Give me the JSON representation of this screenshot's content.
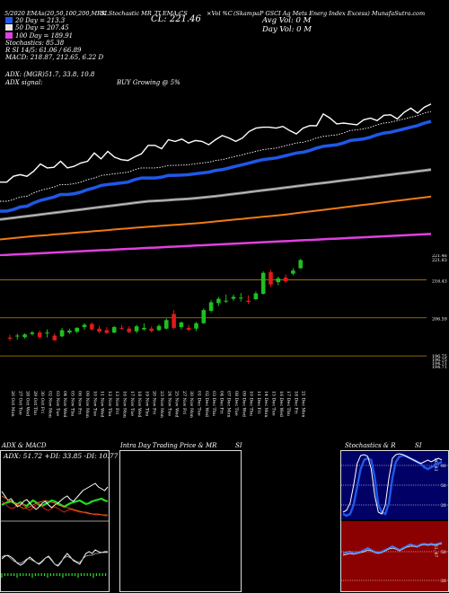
{
  "header": {
    "desc": "(SkampaP GSCI Ag Mets Energ Index Excess) MunafaSutra.com",
    "left_text": "5/2020 EMAs(20,50,100,200,MRK",
    "sl_text": "SLStochastic MR",
    "cl_label": "CL: 221.46",
    "vol_text": "×Vol %C",
    "ti_text": "TI EMA:CS",
    "avg_vol": "Avg Vol: 0  M",
    "day_vol": "Day Vol: 0   M"
  },
  "emas": [
    {
      "label": "20  Day = 213.3",
      "color": "#ffffff"
    },
    {
      "label": "50  Day = 207.45",
      "color": "#ffffff"
    },
    {
      "label": "100  Day = 189.91",
      "color": "#ffffff"
    },
    {
      "label": "Stochastics: 85.38",
      "color": null
    },
    {
      "label": "R         SI 14/5: 61.06 / 66.89",
      "color": null
    },
    {
      "label": "MACD: 218.87, 212.65, 6.22  D",
      "color": null
    }
  ],
  "adx_text": {
    "line1": "ADX:                         (MGR)51.7,  33.8,  10.8",
    "line2a": "ADX  signal:",
    "line2b": "BUY Growing @ 5%"
  },
  "colors": {
    "ema20": "#1f58e8",
    "ema50": "#c8c8c8",
    "ema100": "#f07a14",
    "ema200": "#e040e0",
    "up": "#1fbf1f",
    "down": "#e01a1a",
    "hline": "#b8860b",
    "stoch_bg": "#000066",
    "rsi_bg": "#8b0000"
  },
  "panels": {
    "adx_title": "ADX  & MACD",
    "adx_box": "ADX: 51.72  +DI: 33.85  -DI: 10.77",
    "intra_title": "Intra  Day Trading Price  & MR",
    "intra_si": "SI",
    "stoch_title": "Stochastics & R",
    "stoch_si": "SI",
    "stoch_levels": [
      "80",
      "50",
      "20"
    ],
    "stoch_right_label": "86, 83",
    "rsi_levels": [
      "50",
      "20"
    ],
    "rsi_right_label": "61, 67"
  },
  "chart_data": {
    "type": "candlestick",
    "price_axis_ticks": [
      "221.46",
      "221.83",
      "216.43",
      "206.59",
      "196.75",
      "196.75",
      "194.71",
      "194.71"
    ],
    "x_dates": [
      "26 Oct Mon",
      "27 Oct Tue",
      "28 Oct Wed",
      "29 Oct Thu",
      "30 Oct Fri",
      "02 Nov Mon",
      "03 Nov Tue",
      "04 Nov Wed",
      "05 Nov Thu",
      "06 Nov Fri",
      "09 Nov Mon",
      "10 Nov Tue",
      "11 Nov Wed",
      "12 Nov Thu",
      "13 Nov Fri",
      "16 Nov Mon",
      "17 Nov Tue",
      "18 Nov Wed",
      "19 Nov Thu",
      "20 Nov Fri",
      "23 Nov Mon",
      "24 Nov Tue",
      "25 Nov Wed",
      "27 Nov Fri",
      "30 Nov Mon",
      "01 Dec Tue",
      "02 Dec Wed",
      "03 Dec Thu",
      "04 Dec Fri",
      "07 Dec Mon",
      "08 Dec Tue",
      "09 Dec Wed",
      "10 Dec Thu",
      "11 Dec Fri",
      "14 Dec Mon",
      "15 Dec Tue",
      "16 Dec Wed",
      "17 Dec Thu",
      "18 Dec Fri",
      "21 Dec Mon"
    ],
    "candles": [
      {
        "o": 201.5,
        "h": 202.2,
        "l": 200.6,
        "c": 201.2
      },
      {
        "o": 201.8,
        "h": 202.5,
        "l": 201.0,
        "c": 202.0
      },
      {
        "o": 201.6,
        "h": 202.6,
        "l": 201.2,
        "c": 202.3
      },
      {
        "o": 202.4,
        "h": 203.2,
        "l": 202.0,
        "c": 202.8
      },
      {
        "o": 202.8,
        "h": 203.3,
        "l": 201.2,
        "c": 201.6
      },
      {
        "o": 202.6,
        "h": 203.6,
        "l": 201.5,
        "c": 202.8
      },
      {
        "o": 202.0,
        "h": 202.6,
        "l": 200.6,
        "c": 200.8
      },
      {
        "o": 201.8,
        "h": 204.0,
        "l": 201.6,
        "c": 203.4
      },
      {
        "o": 202.8,
        "h": 203.8,
        "l": 202.4,
        "c": 203.3
      },
      {
        "o": 203.0,
        "h": 204.2,
        "l": 202.6,
        "c": 204.0
      },
      {
        "o": 204.2,
        "h": 205.2,
        "l": 203.5,
        "c": 204.8
      },
      {
        "o": 205.0,
        "h": 205.4,
        "l": 203.3,
        "c": 203.6
      },
      {
        "o": 203.8,
        "h": 204.5,
        "l": 202.6,
        "c": 203.0
      },
      {
        "o": 203.4,
        "h": 204.2,
        "l": 202.4,
        "c": 202.7
      },
      {
        "o": 202.8,
        "h": 204.5,
        "l": 202.6,
        "c": 204.2
      },
      {
        "o": 204.0,
        "h": 204.8,
        "l": 203.5,
        "c": 203.8
      },
      {
        "o": 203.8,
        "h": 204.4,
        "l": 202.6,
        "c": 202.9
      },
      {
        "o": 203.1,
        "h": 204.8,
        "l": 202.6,
        "c": 204.4
      },
      {
        "o": 203.6,
        "h": 205.2,
        "l": 203.3,
        "c": 204.0
      },
      {
        "o": 203.8,
        "h": 204.4,
        "l": 202.8,
        "c": 203.2
      },
      {
        "o": 203.4,
        "h": 204.9,
        "l": 203.2,
        "c": 204.5
      },
      {
        "o": 203.8,
        "h": 206.4,
        "l": 203.6,
        "c": 206.0
      },
      {
        "o": 207.6,
        "h": 208.6,
        "l": 203.6,
        "c": 204.0
      },
      {
        "o": 204.2,
        "h": 205.6,
        "l": 203.6,
        "c": 205.4
      },
      {
        "o": 204.0,
        "h": 204.8,
        "l": 203.1,
        "c": 203.5
      },
      {
        "o": 203.8,
        "h": 205.5,
        "l": 203.2,
        "c": 205.2
      },
      {
        "o": 205.2,
        "h": 209.0,
        "l": 205.0,
        "c": 208.6
      },
      {
        "o": 208.4,
        "h": 211.2,
        "l": 208.0,
        "c": 210.6
      },
      {
        "o": 210.4,
        "h": 212.0,
        "l": 209.6,
        "c": 211.5
      },
      {
        "o": 210.8,
        "h": 212.6,
        "l": 210.4,
        "c": 211.0
      },
      {
        "o": 211.5,
        "h": 212.6,
        "l": 211.0,
        "c": 212.0
      },
      {
        "o": 211.6,
        "h": 213.0,
        "l": 210.8,
        "c": 211.8
      },
      {
        "o": 211.0,
        "h": 212.4,
        "l": 210.2,
        "c": 210.7
      },
      {
        "o": 211.4,
        "h": 213.4,
        "l": 211.2,
        "c": 212.9
      },
      {
        "o": 212.8,
        "h": 218.6,
        "l": 212.6,
        "c": 218.2
      },
      {
        "o": 218.4,
        "h": 219.0,
        "l": 214.6,
        "c": 215.2
      },
      {
        "o": 215.8,
        "h": 217.2,
        "l": 215.0,
        "c": 216.8
      },
      {
        "o": 217.0,
        "h": 217.8,
        "l": 215.6,
        "c": 216.0
      },
      {
        "o": 218.0,
        "h": 219.4,
        "l": 217.6,
        "c": 218.8
      },
      {
        "o": 219.4,
        "h": 221.8,
        "l": 219.2,
        "c": 221.5
      }
    ],
    "close_line": [
      55.5,
      55.5,
      52,
      51,
      52,
      49,
      44.6,
      47,
      46.6,
      43,
      47,
      46,
      44,
      43,
      38,
      41.5,
      37,
      40.5,
      42,
      42.5,
      40.3,
      38.5,
      33.4,
      33.4,
      35.4,
      30,
      31,
      29.6,
      32,
      30.5,
      31,
      33,
      30,
      27.5,
      29,
      31,
      29,
      25,
      23,
      22.5,
      22.5,
      23,
      22,
      24.5,
      26.5,
      23,
      21.5,
      21.6,
      14.5,
      17,
      20.5,
      20,
      20.5,
      21,
      18,
      17,
      18.5,
      15.3,
      15,
      17.5,
      13.5,
      11,
      14,
      10.5,
      8.5
    ],
    "ema20_line": [
      73,
      73,
      72,
      70.5,
      70,
      68,
      66.5,
      65.5,
      64.5,
      63,
      63,
      62.5,
      61.5,
      60,
      59,
      57.5,
      57,
      56.5,
      56,
      55.5,
      54,
      53,
      53,
      53,
      52.5,
      51.5,
      51.4,
      51.3,
      51,
      50.5,
      50,
      49.5,
      48.5,
      48,
      47,
      46,
      45,
      44,
      43,
      42,
      41.5,
      41,
      40,
      39,
      38,
      37.5,
      36.5,
      35,
      34,
      33.5,
      33,
      32,
      30.5,
      30,
      29.5,
      28.5,
      27,
      26,
      25.5,
      24.5,
      23.5,
      22.5,
      21.5,
      20,
      19
    ],
    "ema50_line": [
      78,
      77.5,
      77,
      76.5,
      76,
      75.5,
      75,
      74.5,
      74,
      73.5,
      73,
      72.5,
      72,
      71.5,
      71,
      70.5,
      70,
      69.5,
      69,
      68.5,
      68,
      67.5,
      67,
      66.8,
      66.6,
      66.3,
      66,
      65.8,
      65.5,
      65.2,
      64.8,
      64.4,
      64,
      63.5,
      63,
      62.5,
      62,
      61.5,
      61,
      60.5,
      60,
      59.5,
      59,
      58.5,
      58,
      57.5,
      57,
      56.5,
      56,
      55.5,
      55,
      54.5,
      54,
      53.5,
      53,
      52.5,
      52,
      51.5,
      51,
      50.5,
      50,
      49.5,
      49,
      48.5,
      48
    ],
    "ema100_line": [
      90,
      89.6,
      89.2,
      88.8,
      88.4,
      88,
      87.7,
      87.4,
      87,
      86.7,
      86.4,
      86,
      85.7,
      85.4,
      85,
      84.7,
      84.4,
      84,
      83.7,
      83.4,
      83,
      82.7,
      82.4,
      82.1,
      81.8,
      81.5,
      81.2,
      80.9,
      80.6,
      80.3,
      80,
      79.6,
      79.2,
      78.8,
      78.4,
      78,
      77.6,
      77.2,
      76.8,
      76.4,
      76,
      75.6,
      75.2,
      74.7,
      74.2,
      73.7,
      73.2,
      72.7,
      72.2,
      71.7,
      71.2,
      70.7,
      70.2,
      69.7,
      69.2,
      68.7,
      68.2,
      67.7,
      67.2,
      66.7,
      66.2,
      65.7,
      65.2,
      64.7,
      64.2
    ],
    "ema200_line": [
      99.5,
      99.3,
      99.1,
      98.9,
      98.7,
      98.5,
      98.3,
      98.1,
      97.9,
      97.7,
      97.5,
      97.3,
      97.1,
      96.9,
      96.7,
      96.5,
      96.3,
      96.1,
      95.9,
      95.7,
      95.5,
      95.3,
      95.1,
      94.9,
      94.7,
      94.5,
      94.3,
      94.1,
      93.9,
      93.7,
      93.5,
      93.3,
      93.1,
      92.9,
      92.7,
      92.5,
      92.3,
      92.1,
      91.9,
      91.7,
      91.5,
      91.3,
      91.1,
      90.9,
      90.7,
      90.5,
      90.3,
      90.1,
      89.9,
      89.7,
      89.5,
      89.3,
      89.1,
      88.9,
      88.7,
      88.5,
      88.3,
      88.1,
      87.9,
      87.7,
      87.5,
      87.3,
      87.1,
      86.9,
      86.7
    ]
  }
}
